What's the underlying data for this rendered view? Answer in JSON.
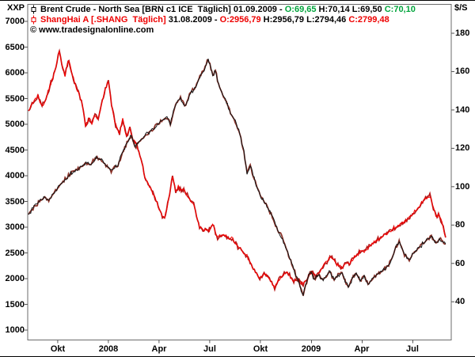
{
  "window": {
    "symbol_label": "XXP",
    "right_unit_label": "$/S",
    "watermark": "© www.tradesignalonline.com",
    "background_color": "#ffffff",
    "frame_color": "#6b6b6b"
  },
  "legend": {
    "rows": [
      {
        "icon": "candlestick-icon",
        "name": "Brent Crude - North Sea [BRN c1 ICE  Täglich]",
        "date": "01.09.2009",
        "separator": "-",
        "open": "O:69,65",
        "high_low": "H:70,14 L:69,50",
        "close": "C:70,10",
        "name_color": "#000000",
        "oc_color": "#00a43b",
        "icon_color": "#000000"
      },
      {
        "icon": "candlestick-icon",
        "name": "ShangHai A [.SHANG  Täglich]",
        "date": "31.08.2009",
        "separator": "-",
        "open": "O:2956,79",
        "high_low": "H:2956,79 L:2794,46",
        "close": "C:2799,48",
        "name_color": "#ee0000",
        "oc_color": "#ee0000",
        "icon_color": "#ee0000"
      }
    ]
  },
  "chart_data": {
    "type": "line",
    "title": "Brent Crude vs ShangHai A, daily, Aug 2007 - Sep 2009",
    "grid": false,
    "legend_position": "top-left-inside",
    "x_axis": {
      "ticks": [
        {
          "label": "Okt",
          "t": 1.73
        },
        {
          "label": "2008",
          "t": 4.73
        },
        {
          "label": "Apr",
          "t": 7.73
        },
        {
          "label": "Jul",
          "t": 10.73
        },
        {
          "label": "Okt",
          "t": 13.73
        },
        {
          "label": "2009",
          "t": 16.76
        },
        {
          "label": "Apr",
          "t": 19.76
        },
        {
          "label": "Jul",
          "t": 22.76
        }
      ],
      "t_units": "months since Aug 2007",
      "t_end": 24.7
    },
    "left_axis": {
      "owner": "ShangHai A",
      "ticks": [
        7000,
        6500,
        6000,
        5500,
        5000,
        4500,
        4000,
        3500,
        3000,
        2500,
        2000,
        1500,
        1000
      ],
      "max": 7000,
      "min": 1000
    },
    "right_axis": {
      "owner": "Brent Crude ($/S)",
      "ticks": [
        180,
        160,
        140,
        120,
        100,
        80,
        60,
        40
      ],
      "max": 180,
      "min": 40
    },
    "series": [
      {
        "name": "ShangHai A",
        "axis": "left",
        "color": "#f40000",
        "shadow_color": "#b00000",
        "points": [
          [
            0,
            5262
          ],
          [
            0.28,
            5446
          ],
          [
            0.56,
            5539
          ],
          [
            0.8,
            5369
          ],
          [
            1.03,
            5492
          ],
          [
            1.27,
            5754
          ],
          [
            1.5,
            5954
          ],
          [
            1.69,
            6215
          ],
          [
            1.83,
            6446
          ],
          [
            1.97,
            6154
          ],
          [
            2.16,
            5954
          ],
          [
            2.3,
            6154
          ],
          [
            2.39,
            6246
          ],
          [
            2.53,
            6031
          ],
          [
            2.72,
            5800
          ],
          [
            2.95,
            5615
          ],
          [
            3.19,
            5385
          ],
          [
            3.38,
            4954
          ],
          [
            3.56,
            5108
          ],
          [
            3.75,
            5031
          ],
          [
            3.94,
            5185
          ],
          [
            4.13,
            5108
          ],
          [
            4.31,
            5369
          ],
          [
            4.55,
            5692
          ],
          [
            4.73,
            5831
          ],
          [
            4.92,
            5369
          ],
          [
            5.16,
            4985
          ],
          [
            5.39,
            4831
          ],
          [
            5.58,
            5077
          ],
          [
            5.81,
            4769
          ],
          [
            6,
            4923
          ],
          [
            6.19,
            4692
          ],
          [
            6.42,
            4600
          ],
          [
            6.66,
            4338
          ],
          [
            6.89,
            3954
          ],
          [
            7.22,
            3769
          ],
          [
            7.5,
            3560
          ],
          [
            7.8,
            3290
          ],
          [
            8.06,
            3154
          ],
          [
            8.3,
            3550
          ],
          [
            8.53,
            3985
          ],
          [
            8.72,
            3680
          ],
          [
            8.87,
            3780
          ],
          [
            9.05,
            3700
          ],
          [
            9.2,
            3740
          ],
          [
            9.4,
            3620
          ],
          [
            9.6,
            3520
          ],
          [
            9.78,
            3460
          ],
          [
            9.95,
            3230
          ],
          [
            10.13,
            2985
          ],
          [
            10.4,
            2950
          ],
          [
            10.65,
            2920
          ],
          [
            10.9,
            3046
          ],
          [
            11.2,
            2800
          ],
          [
            11.45,
            2846
          ],
          [
            11.75,
            2810
          ],
          [
            12.1,
            2754
          ],
          [
            12.4,
            2615
          ],
          [
            12.75,
            2500
          ],
          [
            13,
            2400
          ],
          [
            13.25,
            2250
          ],
          [
            13.5,
            2100
          ],
          [
            13.7,
            2000
          ],
          [
            13.95,
            2092
          ],
          [
            14.2,
            2031
          ],
          [
            14.4,
            1908
          ],
          [
            14.58,
            1800
          ],
          [
            14.78,
            1954
          ],
          [
            14.97,
            2031
          ],
          [
            15.15,
            2108
          ],
          [
            15.33,
            2138
          ],
          [
            15.52,
            2031
          ],
          [
            15.71,
            1938
          ],
          [
            15.9,
            2000
          ],
          [
            16.08,
            1923
          ],
          [
            16.27,
            1892
          ],
          [
            16.45,
            1985
          ],
          [
            16.64,
            2062
          ],
          [
            16.83,
            2123
          ],
          [
            17.02,
            2031
          ],
          [
            17.21,
            2108
          ],
          [
            17.44,
            2231
          ],
          [
            17.67,
            2338
          ],
          [
            17.91,
            2431
          ],
          [
            18.14,
            2338
          ],
          [
            18.38,
            2246
          ],
          [
            18.61,
            2215
          ],
          [
            18.8,
            2308
          ],
          [
            18.99,
            2277
          ],
          [
            19.17,
            2369
          ],
          [
            19.41,
            2462
          ],
          [
            19.64,
            2523
          ],
          [
            19.88,
            2538
          ],
          [
            20.11,
            2615
          ],
          [
            20.35,
            2677
          ],
          [
            20.58,
            2738
          ],
          [
            20.82,
            2785
          ],
          [
            21.05,
            2846
          ],
          [
            21.29,
            2908
          ],
          [
            21.52,
            2954
          ],
          [
            21.75,
            3000
          ],
          [
            21.99,
            3046
          ],
          [
            22.22,
            3092
          ],
          [
            22.46,
            3154
          ],
          [
            22.69,
            3231
          ],
          [
            22.92,
            3323
          ],
          [
            23.16,
            3415
          ],
          [
            23.39,
            3508
          ],
          [
            23.58,
            3569
          ],
          [
            23.77,
            3615
          ],
          [
            23.91,
            3446
          ],
          [
            24.05,
            3308
          ],
          [
            24.19,
            3185
          ],
          [
            24.28,
            3262
          ],
          [
            24.42,
            3138
          ],
          [
            24.56,
            3000
          ],
          [
            24.7,
            2800
          ]
        ]
      },
      {
        "name": "Brent Crude - North Sea",
        "axis": "right",
        "color": "#141414",
        "shadow_color": "#7c1a10",
        "points": [
          [
            0,
            85.5
          ],
          [
            0.4,
            90
          ],
          [
            0.9,
            94.5
          ],
          [
            1.2,
            93
          ],
          [
            1.6,
            98
          ],
          [
            2.1,
            103
          ],
          [
            2.5,
            107
          ],
          [
            3,
            110
          ],
          [
            3.4,
            112.5
          ],
          [
            3.7,
            111.5
          ],
          [
            4,
            115.5
          ],
          [
            4.4,
            113.5
          ],
          [
            4.9,
            108
          ],
          [
            5.3,
            111.5
          ],
          [
            5.7,
            120.5
          ],
          [
            6.1,
            127
          ],
          [
            6.3,
            120.5
          ],
          [
            6.7,
            125
          ],
          [
            7.2,
            129
          ],
          [
            7.7,
            133
          ],
          [
            8.2,
            136.5
          ],
          [
            8.4,
            132.5
          ],
          [
            8.7,
            143
          ],
          [
            9,
            146.5
          ],
          [
            9.25,
            142
          ],
          [
            9.6,
            149
          ],
          [
            9.9,
            151.5
          ],
          [
            10.15,
            157.5
          ],
          [
            10.4,
            161
          ],
          [
            10.64,
            166.5
          ],
          [
            10.8,
            162
          ],
          [
            10.92,
            158
          ],
          [
            11.07,
            160.5
          ],
          [
            11.25,
            153.5
          ],
          [
            11.5,
            148
          ],
          [
            11.72,
            144
          ],
          [
            11.96,
            139
          ],
          [
            12.24,
            134
          ],
          [
            12.52,
            127.5
          ],
          [
            12.75,
            118.5
          ],
          [
            12.94,
            107
          ],
          [
            13.13,
            110.5
          ],
          [
            13.31,
            105.5
          ],
          [
            13.6,
            98
          ],
          [
            13.83,
            93.5
          ],
          [
            14.06,
            91
          ],
          [
            14.3,
            86.5
          ],
          [
            14.58,
            81.5
          ],
          [
            14.81,
            76.5
          ],
          [
            15.05,
            73
          ],
          [
            15.28,
            67
          ],
          [
            15.47,
            62.5
          ],
          [
            15.71,
            57.5
          ],
          [
            15.89,
            52.5
          ],
          [
            16.08,
            48.5
          ],
          [
            16.27,
            43
          ],
          [
            16.41,
            48.5
          ],
          [
            16.6,
            54
          ],
          [
            16.74,
            56
          ],
          [
            16.92,
            51.5
          ],
          [
            17.16,
            54
          ],
          [
            17.39,
            51.5
          ],
          [
            17.63,
            53.5
          ],
          [
            17.86,
            55.5
          ],
          [
            18.1,
            51.5
          ],
          [
            18.33,
            54
          ],
          [
            18.57,
            55
          ],
          [
            18.8,
            50
          ],
          [
            18.94,
            47.5
          ],
          [
            19.17,
            52
          ],
          [
            19.41,
            55
          ],
          [
            19.64,
            51
          ],
          [
            19.88,
            53.5
          ],
          [
            20.11,
            49.5
          ],
          [
            20.35,
            51.5
          ],
          [
            20.63,
            54
          ],
          [
            20.86,
            56
          ],
          [
            21.1,
            57.5
          ],
          [
            21.33,
            59
          ],
          [
            21.57,
            63.5
          ],
          [
            21.75,
            68.5
          ],
          [
            21.95,
            71.5
          ],
          [
            22.08,
            68
          ],
          [
            22.27,
            64.5
          ],
          [
            22.55,
            61.5
          ],
          [
            22.74,
            64.5
          ],
          [
            22.92,
            66.5
          ],
          [
            23.16,
            68.5
          ],
          [
            23.39,
            70.5
          ],
          [
            23.58,
            72.5
          ],
          [
            23.86,
            74
          ],
          [
            24,
            71.5
          ],
          [
            24.19,
            70.5
          ],
          [
            24.33,
            73
          ],
          [
            24.47,
            71.5
          ],
          [
            24.7,
            70.1
          ]
        ]
      }
    ]
  }
}
